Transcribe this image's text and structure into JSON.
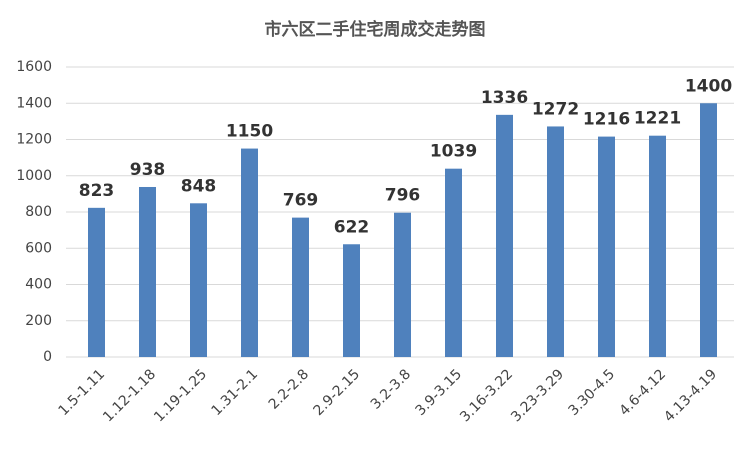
{
  "chart_data": {
    "type": "bar",
    "title": "市六区二手住宅周成交走势图",
    "categories": [
      "1.5-1.11",
      "1.12-1.18",
      "1.19-1.25",
      "1.31-2.1",
      "2.2-2.8",
      "2.9-2.15",
      "3.2-3.8",
      "3.9-3.15",
      "3.16-3.22",
      "3.23-3.29",
      "3.30-4.5",
      "4.6-4.12",
      "4.13-4.19"
    ],
    "values": [
      823,
      938,
      848,
      1150,
      769,
      622,
      796,
      1039,
      1336,
      1272,
      1216,
      1221,
      1400
    ],
    "color": "#4f81bd",
    "ylim": [
      0,
      1600
    ],
    "yticks": [
      0,
      200,
      400,
      600,
      800,
      1000,
      1200,
      1400,
      1600
    ],
    "grid": true
  }
}
